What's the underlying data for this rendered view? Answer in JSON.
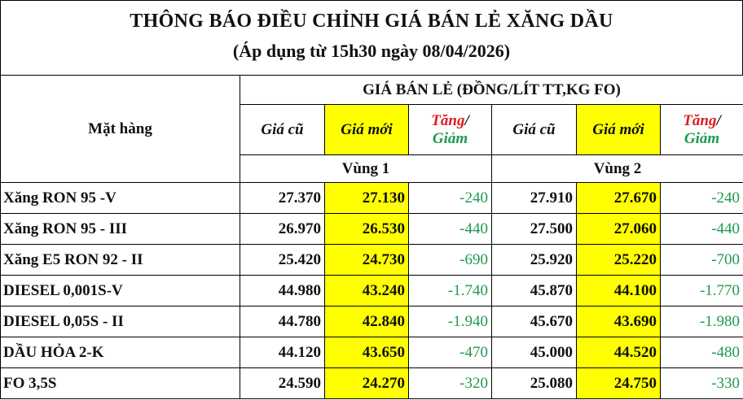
{
  "title": "THÔNG BÁO ĐIỀU CHỈNH GIÁ BÁN LẺ XĂNG DẦU",
  "subtitle": "(Áp dụng từ 15h30 ngày 08/04/2026)",
  "header": {
    "item_col": "Mặt hàng",
    "price_group": "GIÁ BÁN LẺ (ĐỒNG/LÍT TT,KG FO)",
    "old_price": "Giá cũ",
    "new_price": "Giá mới",
    "increase": "Tăng",
    "slash": "/",
    "decrease": "Giảm",
    "region1": "Vùng 1",
    "region2": "Vùng 2"
  },
  "colors": {
    "highlight": "#ffff00",
    "increase": "#e01b1b",
    "decrease": "#1e9a50"
  },
  "rows": [
    {
      "name": "Xăng RON 95 -V",
      "r1_old": "27.370",
      "r1_new": "27.130",
      "r1_chg": "-240",
      "r2_old": "27.910",
      "r2_new": "27.670",
      "r2_chg": "-240"
    },
    {
      "name": "Xăng RON 95 - III",
      "r1_old": "26.970",
      "r1_new": "26.530",
      "r1_chg": "-440",
      "r2_old": "27.500",
      "r2_new": "27.060",
      "r2_chg": "-440"
    },
    {
      "name": "Xăng E5 RON 92 - II",
      "r1_old": "25.420",
      "r1_new": "24.730",
      "r1_chg": "-690",
      "r2_old": "25.920",
      "r2_new": "25.220",
      "r2_chg": "-700"
    },
    {
      "name": "DIESEL 0,001S-V",
      "r1_old": "44.980",
      "r1_new": "43.240",
      "r1_chg": "-1.740",
      "r2_old": "45.870",
      "r2_new": "44.100",
      "r2_chg": "-1.770"
    },
    {
      "name": "DIESEL 0,05S - II",
      "r1_old": "44.780",
      "r1_new": "42.840",
      "r1_chg": "-1.940",
      "r2_old": "45.670",
      "r2_new": "43.690",
      "r2_chg": "-1.980"
    },
    {
      "name": "DẦU HỎA 2-K",
      "r1_old": "44.120",
      "r1_new": "43.650",
      "r1_chg": "-470",
      "r2_old": "45.000",
      "r2_new": "44.520",
      "r2_chg": "-480"
    },
    {
      "name": "FO 3,5S",
      "r1_old": "24.590",
      "r1_new": "24.270",
      "r1_chg": "-320",
      "r2_old": "25.080",
      "r2_new": "24.750",
      "r2_chg": "-330"
    }
  ]
}
